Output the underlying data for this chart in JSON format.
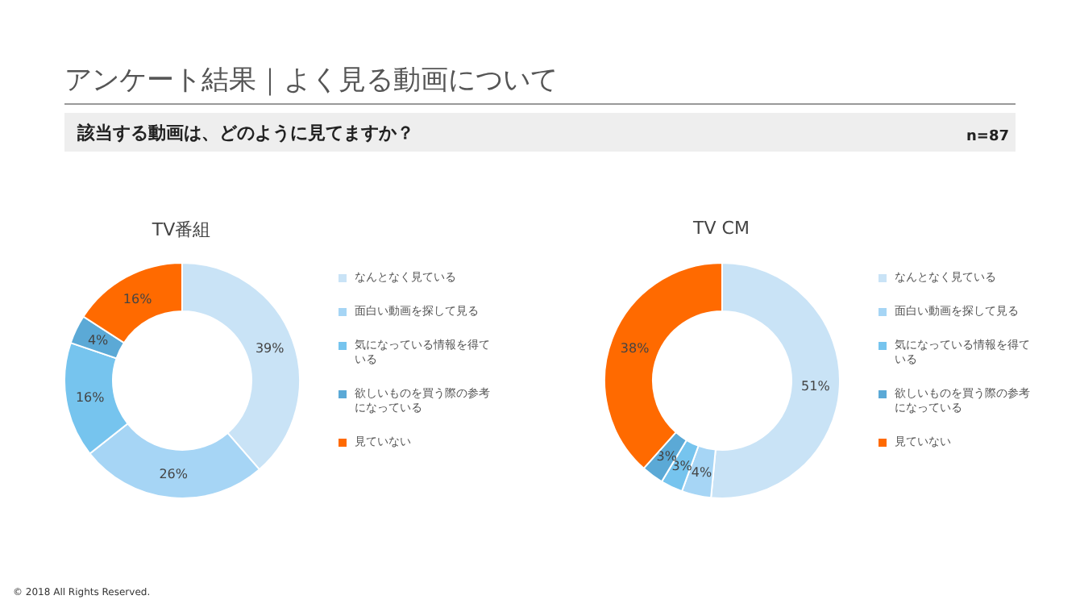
{
  "chart_data": [
    {
      "type": "other",
      "title": "アンケート結果｜よく見る動画について",
      "subtitle": "該当する動画は、どのように見てますか？",
      "annotations": [
        "n=87",
        "© 2018 All Rights Reserved."
      ]
    },
    {
      "type": "donut",
      "title": "TV番組",
      "categories": [
        "なんとなく見ている",
        "面白い動画を探して見る",
        "気になっている情報を得ている",
        "欲しいものを買う際の参考になっている",
        "見ていない"
      ],
      "values": [
        39,
        26,
        16,
        4,
        16
      ],
      "value_labels": [
        "39%",
        "26%",
        "16%",
        "4%",
        "16%"
      ],
      "colors": [
        "#c9e3f6",
        "#a6d5f5",
        "#76c4ee",
        "#5ba9d6",
        "#ff6a00"
      ],
      "legend": "right"
    },
    {
      "type": "donut",
      "title": "TV CM",
      "categories": [
        "なんとなく見ている",
        "面白い動画を探して見る",
        "気になっている情報を得ている",
        "欲しいものを買う際の参考になっている",
        "見ていない"
      ],
      "values": [
        51,
        4,
        3,
        3,
        38
      ],
      "value_labels": [
        "51%",
        "4%",
        "3%",
        "3%",
        "38%"
      ],
      "colors": [
        "#c9e3f6",
        "#a6d5f5",
        "#76c4ee",
        "#5ba9d6",
        "#ff6a00"
      ],
      "legend": "right"
    }
  ]
}
